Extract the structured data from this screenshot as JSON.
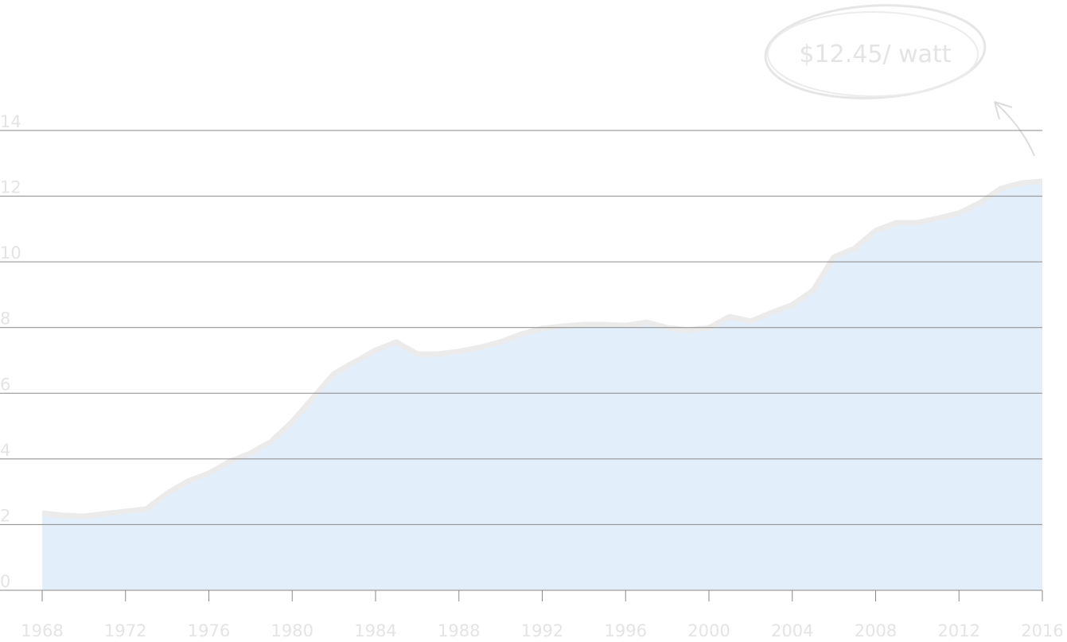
{
  "chart_data": {
    "type": "area",
    "annotation": "$12.45/ watt",
    "x": [
      1968,
      1969,
      1970,
      1971,
      1972,
      1973,
      1974,
      1975,
      1976,
      1977,
      1978,
      1979,
      1980,
      1981,
      1982,
      1983,
      1984,
      1985,
      1986,
      1987,
      1988,
      1989,
      1990,
      1991,
      1992,
      1993,
      1994,
      1995,
      1996,
      1997,
      1998,
      1999,
      2000,
      2001,
      2002,
      2003,
      2004,
      2005,
      2006,
      2007,
      2008,
      2009,
      2010,
      2011,
      2012,
      2013,
      2014,
      2015,
      2016
    ],
    "values": [
      2.35,
      2.28,
      2.25,
      2.33,
      2.4,
      2.47,
      2.95,
      3.32,
      3.56,
      3.92,
      4.17,
      4.53,
      5.13,
      5.86,
      6.59,
      6.95,
      7.31,
      7.56,
      7.19,
      7.19,
      7.27,
      7.39,
      7.56,
      7.8,
      7.97,
      8.04,
      8.09,
      8.09,
      8.06,
      8.16,
      7.99,
      7.92,
      7.99,
      8.33,
      8.19,
      8.45,
      8.69,
      9.13,
      10.15,
      10.41,
      10.95,
      11.19,
      11.19,
      11.33,
      11.48,
      11.79,
      12.23,
      12.4,
      12.45
    ],
    "color": "#e3eefb",
    "line_color": "#ebebeb",
    "xlim": [
      1968,
      2016
    ],
    "xticks": [
      1968,
      1972,
      1976,
      1980,
      1984,
      1988,
      1992,
      1996,
      2000,
      2004,
      2008,
      2012,
      2016
    ],
    "ylim": [
      0,
      14
    ],
    "yticks": [
      0,
      2,
      4,
      6,
      8,
      10,
      12,
      14
    ],
    "grid": true
  }
}
